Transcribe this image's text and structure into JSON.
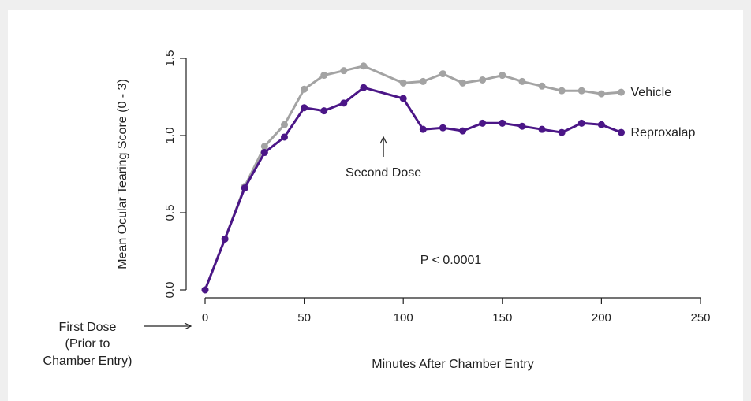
{
  "chart_data": {
    "type": "line",
    "xlabel": "Minutes After Chamber Entry",
    "ylabel": "Mean Ocular Tearing Score (0 - 3)",
    "xlim": [
      0,
      250
    ],
    "ylim": [
      0,
      1.5
    ],
    "x_ticks": [
      "0",
      "50",
      "100",
      "150",
      "200",
      "250"
    ],
    "y_ticks": [
      "0.0",
      "0.5",
      "1.0",
      "1.5"
    ],
    "grid": false,
    "x": [
      0,
      10,
      20,
      30,
      40,
      50,
      60,
      70,
      80,
      100,
      110,
      120,
      130,
      140,
      150,
      160,
      170,
      180,
      190,
      200,
      210
    ],
    "series": [
      {
        "name": "Vehicle",
        "color": "#a3a3a3",
        "values": [
          0.0,
          0.33,
          0.67,
          0.93,
          1.07,
          1.3,
          1.39,
          1.42,
          1.45,
          1.34,
          1.35,
          1.4,
          1.34,
          1.36,
          1.39,
          1.35,
          1.32,
          1.29,
          1.29,
          1.27,
          1.28
        ]
      },
      {
        "name": "Reproxalap",
        "color": "#4b1687",
        "values": [
          0.0,
          0.33,
          0.66,
          0.89,
          0.99,
          1.18,
          1.16,
          1.21,
          1.31,
          1.24,
          1.04,
          1.05,
          1.03,
          1.08,
          1.08,
          1.06,
          1.04,
          1.02,
          1.08,
          1.07,
          1.02
        ]
      }
    ],
    "annotations": {
      "second_dose": "Second Dose",
      "second_dose_x": 90,
      "p_value": "P < 0.0001",
      "first_dose": [
        "First Dose",
        "(Prior to",
        "Chamber Entry)"
      ]
    }
  }
}
